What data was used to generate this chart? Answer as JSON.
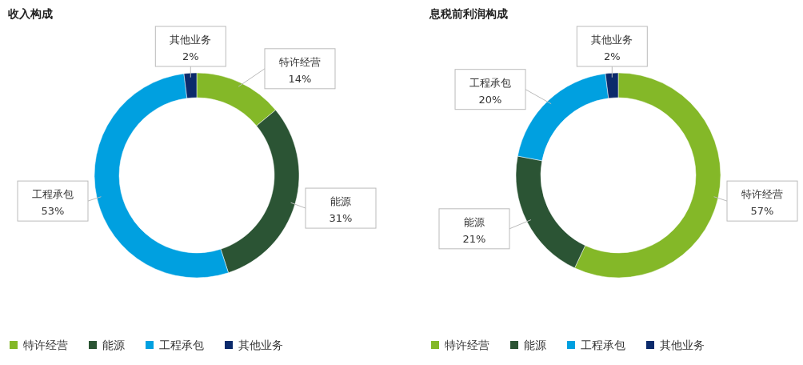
{
  "chart_data": [
    {
      "type": "donut",
      "title": "收入构成",
      "categories": [
        "特许经营",
        "能源",
        "工程承包",
        "其他业务"
      ],
      "values": [
        14,
        31,
        53,
        2
      ],
      "colors": [
        "#84b828",
        "#2b5434",
        "#00a0e0",
        "#0b2a6b"
      ],
      "value_labels": [
        "14%",
        "31%",
        "53%",
        "2%"
      ],
      "legend": "bottom"
    },
    {
      "type": "donut",
      "title": "息税前利润构成",
      "categories": [
        "特许经营",
        "能源",
        "工程承包",
        "其他业务"
      ],
      "values": [
        57,
        21,
        20,
        2
      ],
      "colors": [
        "#84b828",
        "#2b5434",
        "#00a0e0",
        "#0b2a6b"
      ],
      "value_labels": [
        "57%",
        "21%",
        "20%",
        "2%"
      ],
      "legend": "bottom"
    }
  ]
}
